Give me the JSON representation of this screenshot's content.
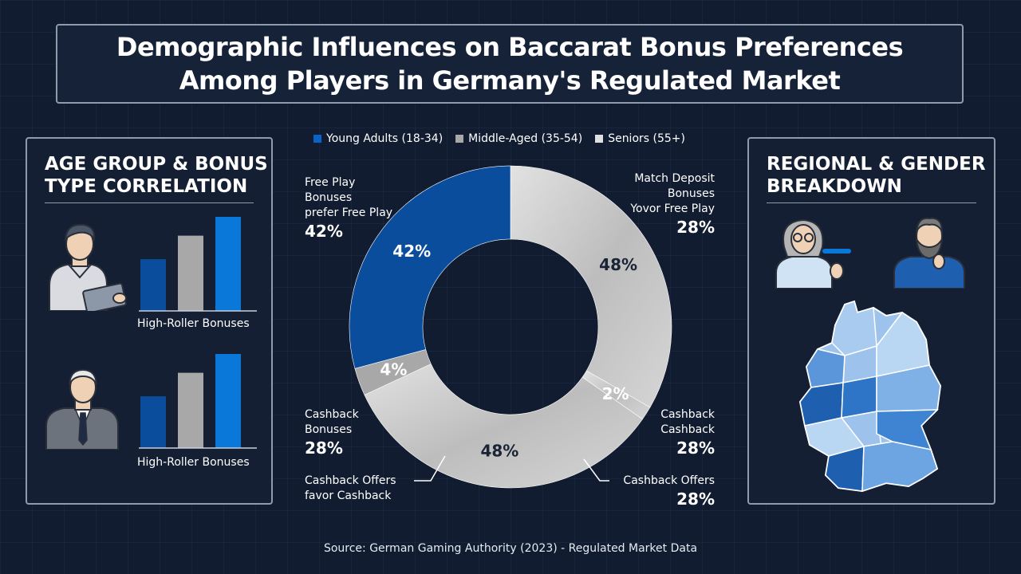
{
  "title": {
    "line1": "Demographic Influences on Baccarat Bonus Preferences",
    "line2": "Among Players in Germany's Regulated Market"
  },
  "left_panel": {
    "title_line1": "AGE GROUP & BONUS",
    "title_line2": "TYPE CORRELATION",
    "group1_caption": "High-Roller Bonuses",
    "group2_caption": "High-Roller Bonuses",
    "icons": [
      "young-man-tablet-icon",
      "senior-man-suit-icon"
    ]
  },
  "right_panel": {
    "title_line1": "REGIONAL & GENDER",
    "title_line2": "BREAKDOWN",
    "icons": [
      "woman-glasses-icon",
      "bearded-man-icon",
      "germany-map-icon"
    ]
  },
  "labels": {
    "tl_line1": "Free Play",
    "tl_line2": "Bonuses",
    "tl_line3": "prefer Free Play",
    "tl_pct": "42%",
    "tr_line1": "Match Deposit",
    "tr_line2": "Bonuses",
    "tr_line3": "Yovor Free Play",
    "tr_pct": "28%",
    "ml_line1": "Cashback",
    "ml_line2": "Bonuses",
    "ml_pct": "28%",
    "mr_line1": "Cashback",
    "mr_line2": "Cashback",
    "mr_pct": "28%",
    "bl_line1": "Cashback Offers",
    "bl_line2": "favor Cashback",
    "br_line1": "Cashback Offers",
    "br_pct": "28%"
  },
  "source": "Source: German Gaming Authority (2023) - Regulated Market Data",
  "colors": {
    "young": "#0a4d9c",
    "middle": "#a8a8a8",
    "senior": "#d9d9d9",
    "bright_blue": "#0a78d8",
    "background": "#111c30"
  },
  "chart_data": [
    {
      "type": "pie",
      "legend": [
        "Young Adults (18-34)",
        "Middle-Aged (35-54)",
        "Seniors (55+)"
      ],
      "legend_position": "top",
      "segments": [
        {
          "label": "48%",
          "value": 48,
          "color": "#d4d4d4"
        },
        {
          "label": "2%",
          "value": 2,
          "color": "#cfcfcf"
        },
        {
          "label": "48%",
          "value": 48,
          "color": "#c8c8c8"
        },
        {
          "label": "4%",
          "value": 4,
          "color": "#a8a8a8"
        },
        {
          "label": "42%",
          "value": 42,
          "color": "#0a4d9c"
        }
      ]
    },
    {
      "type": "bar",
      "categories": [
        "Young Adults (18-34)",
        "Middle-Aged (35-54)",
        "Seniors (55+)"
      ],
      "values": [
        0.55,
        0.8,
        1.0
      ],
      "colors": [
        "#0a4d9c",
        "#a8a8a8",
        "#0a78d8"
      ],
      "xlabel": "High-Roller Bonuses"
    },
    {
      "type": "bar",
      "categories": [
        "Young Adults (18-34)",
        "Middle-Aged (35-54)",
        "Seniors (55+)"
      ],
      "values": [
        0.55,
        0.8,
        1.0
      ],
      "colors": [
        "#0a4d9c",
        "#a8a8a8",
        "#0a78d8"
      ],
      "xlabel": "High-Roller Bonuses"
    }
  ]
}
